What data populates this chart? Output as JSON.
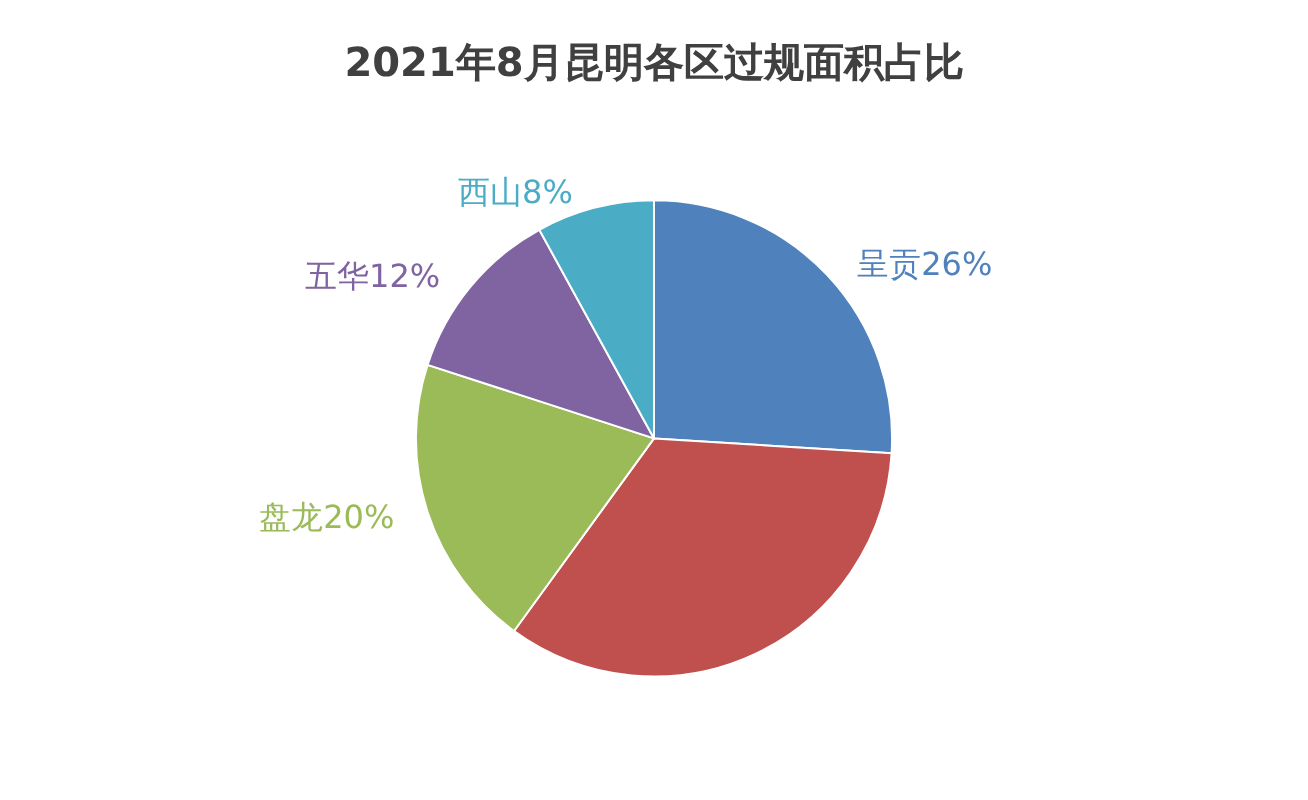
{
  "chart_data": {
    "type": "pie",
    "title": "2021年8月昆明各区过规面积占比",
    "categories": [
      "呈贡",
      null,
      "盘龙",
      "五华",
      "西山"
    ],
    "values": [
      26,
      34,
      20,
      12,
      8
    ],
    "value_labels": [
      "26%",
      null,
      "20%",
      "12%",
      "8%"
    ],
    "colors": [
      "#4f81bd",
      "#c0504d",
      "#9bbb59",
      "#8064a2",
      "#4bacc6"
    ],
    "legend": false
  }
}
